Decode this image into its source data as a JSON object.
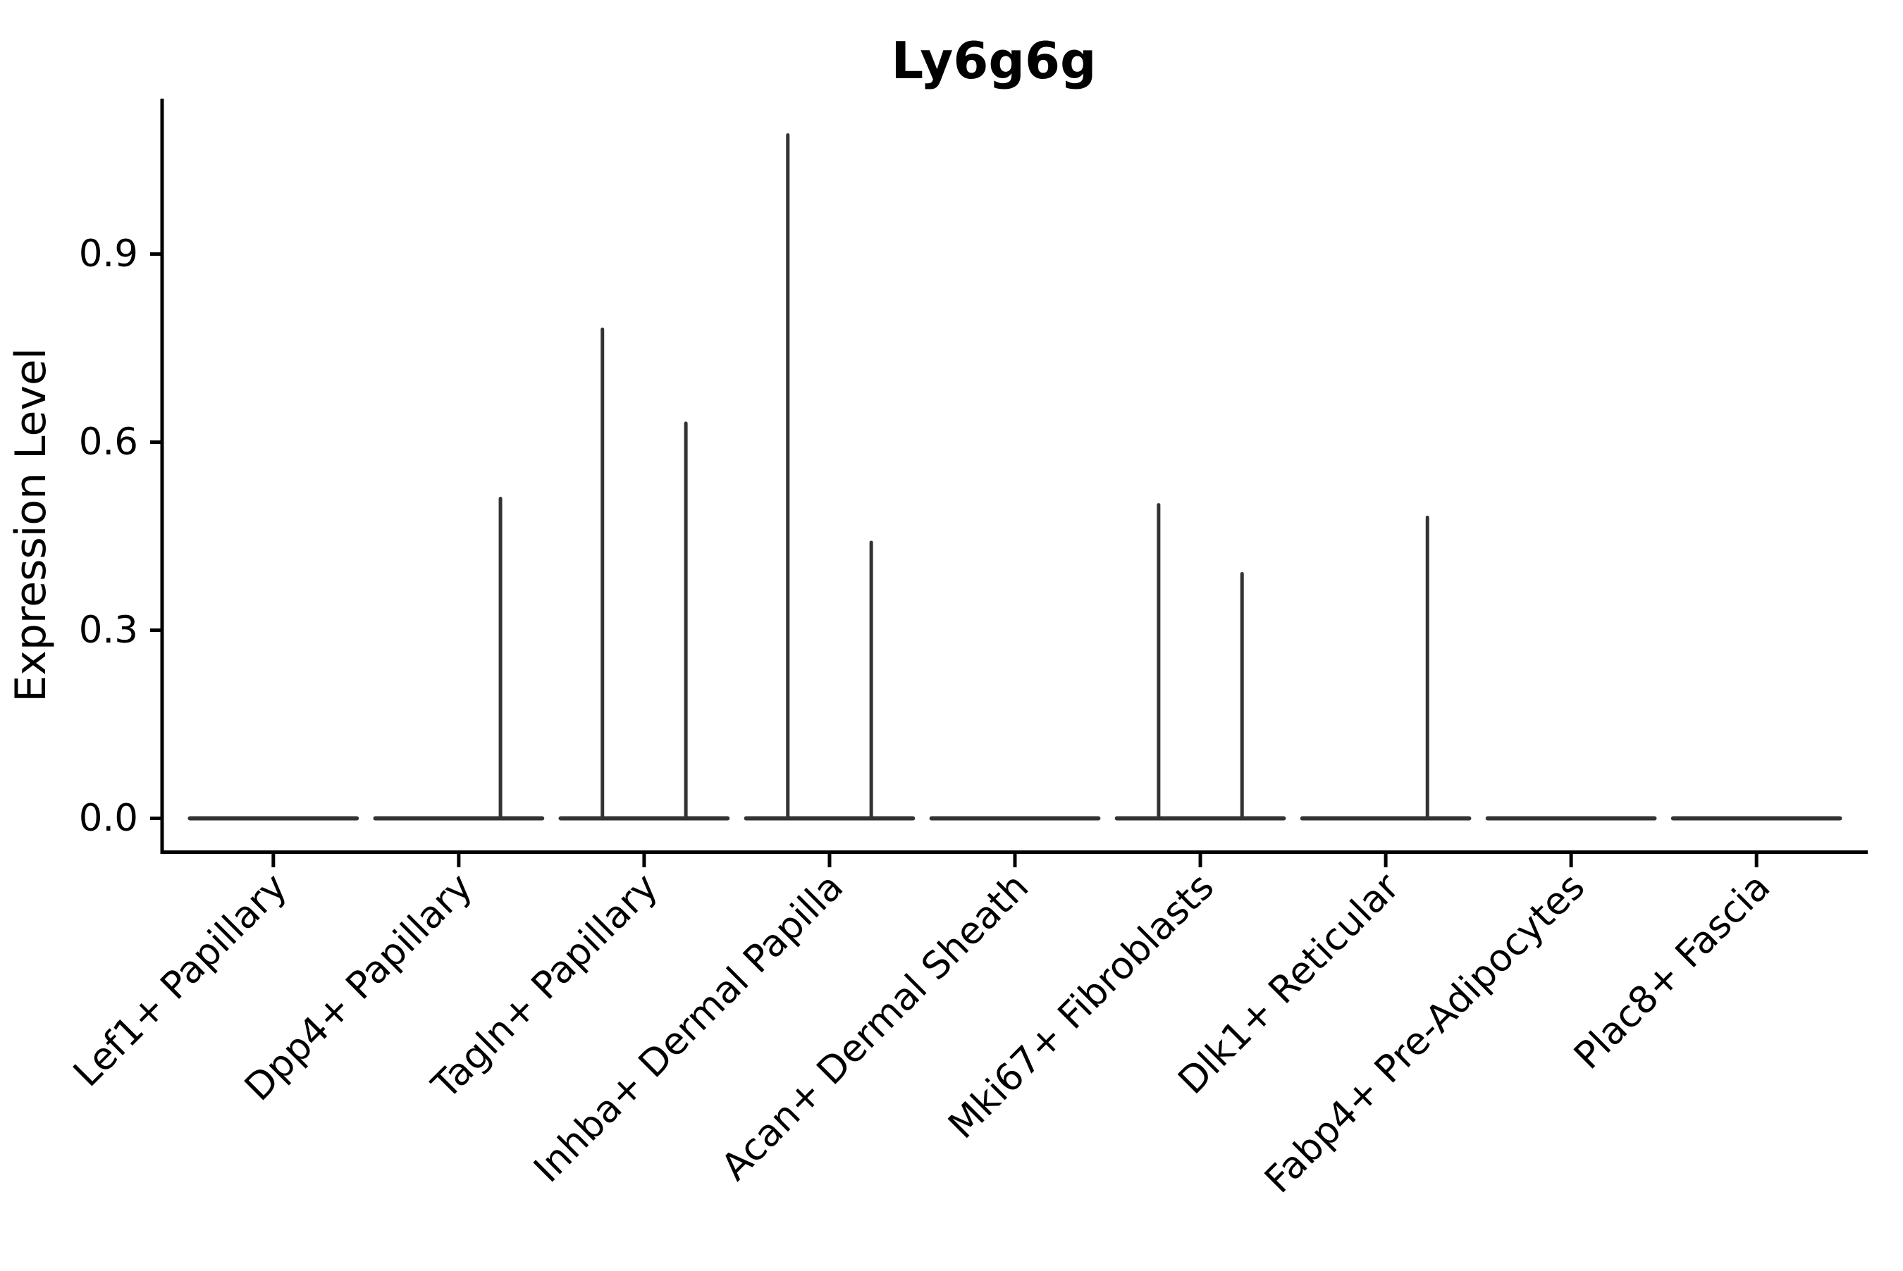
{
  "chart_data": {
    "type": "violin",
    "title": "Ly6g6g",
    "ylabel": "Expression Level",
    "xlabel": "",
    "grid": false,
    "legend": null,
    "yticks": [
      0.0,
      0.3,
      0.6,
      0.9
    ],
    "ylim": [
      -0.054,
      1.148
    ],
    "x_units_range": [
      0.4,
      9.6
    ],
    "violin_half_width_units": 0.45,
    "sub_violin_offset_units": 0.225,
    "categories": [
      "Lef1+ Papillary",
      "Dpp4+ Papillary",
      "Tagln+ Papillary",
      "Inhba+ Dermal Papilla",
      "Acan+ Dermal Sheath",
      "Mki67+ Fibroblasts",
      "Dlk1+ Reticular",
      "Fabp4+ Pre-Adipocytes",
      "Plac8+ Fascia"
    ],
    "series": [
      {
        "category": "Lef1+ Papillary",
        "baseline": 0.0,
        "spikes": []
      },
      {
        "category": "Dpp4+ Papillary",
        "baseline": 0.0,
        "spikes": [
          {
            "offset_units": 0.225,
            "max_expression": 0.51
          }
        ]
      },
      {
        "category": "Tagln+ Papillary",
        "baseline": 0.0,
        "spikes": [
          {
            "offset_units": -0.225,
            "max_expression": 0.78
          },
          {
            "offset_units": 0.225,
            "max_expression": 0.63
          }
        ]
      },
      {
        "category": "Inhba+ Dermal Papilla",
        "baseline": 0.0,
        "spikes": [
          {
            "offset_units": -0.225,
            "max_expression": 1.09
          },
          {
            "offset_units": 0.225,
            "max_expression": 0.44
          }
        ]
      },
      {
        "category": "Acan+ Dermal Sheath",
        "baseline": 0.0,
        "spikes": []
      },
      {
        "category": "Mki67+ Fibroblasts",
        "baseline": 0.0,
        "spikes": [
          {
            "offset_units": -0.225,
            "max_expression": 0.5
          },
          {
            "offset_units": 0.225,
            "max_expression": 0.39
          }
        ]
      },
      {
        "category": "Dlk1+ Reticular",
        "baseline": 0.0,
        "spikes": [
          {
            "offset_units": 0.225,
            "max_expression": 0.48
          }
        ]
      },
      {
        "category": "Fabp4+ Pre-Adipocytes",
        "baseline": 0.0,
        "spikes": []
      },
      {
        "category": "Plac8+ Fascia",
        "baseline": 0.0,
        "spikes": []
      }
    ],
    "colors": {
      "background": "#ffffff",
      "axis": "#000000",
      "text": "#000000",
      "violin_stroke": "#333333"
    }
  }
}
